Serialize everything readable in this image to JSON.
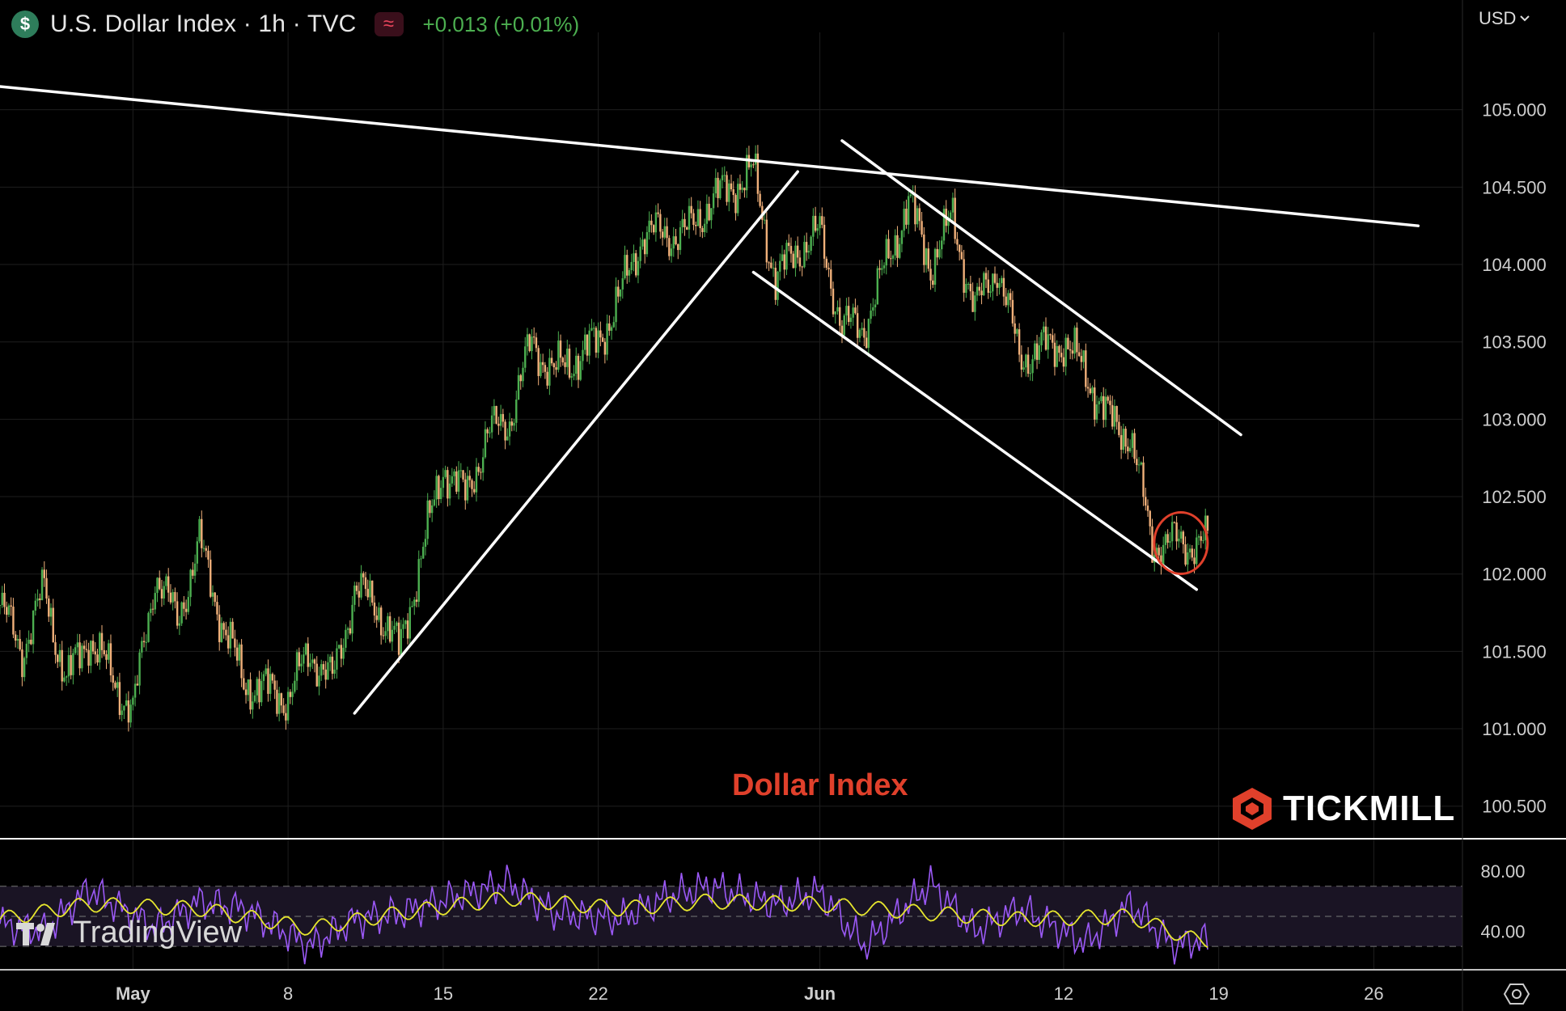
{
  "header": {
    "symbol_icon": "$",
    "title": "U.S. Dollar Index · 1h · TVC",
    "indicator_icon": "≈",
    "change": "+0.013 (+0.01%)"
  },
  "currency_selector": {
    "label": "USD",
    "icon": "chevron-down-icon"
  },
  "caption": "Dollar Index",
  "brand": {
    "name": "TICKMILL",
    "icon": "tickmill-logo-icon"
  },
  "tv_logo": {
    "text": "TradingView",
    "icon": "tradingview-logo-icon"
  },
  "settings_icon": "gear-icon",
  "colors": {
    "background": "#000000",
    "candle_up": "#4caf50",
    "candle_down": "#f0b07a",
    "trendline": "#ffffff",
    "circle": "#e0402b",
    "rsi": "#9b59f6",
    "rsi_ma": "#e6e62e",
    "change": "#4caf50",
    "caption": "#e0402b"
  },
  "chart_data": [
    {
      "type": "line",
      "title": "U.S. Dollar Index · 1h · TVC",
      "xlabel": "",
      "ylabel": "",
      "x_ticks": [
        "May",
        "8",
        "15",
        "22",
        "Jun",
        "12",
        "19",
        "26"
      ],
      "y_ticks": [
        "105.000",
        "104.500",
        "104.000",
        "103.500",
        "103.000",
        "102.500",
        "102.000",
        "101.500",
        "101.000",
        "100.500"
      ],
      "ylim": [
        100.3,
        105.5
      ],
      "xlim": [
        "2023-04-25",
        "2023-06-30"
      ],
      "grid": true,
      "series": [
        {
          "style": "candles-approx",
          "x": [
            "2023-04-25",
            "2023-04-26",
            "2023-04-27",
            "2023-04-28",
            "2023-04-29",
            "2023-05-01",
            "2023-05-02",
            "2023-05-03",
            "2023-05-04",
            "2023-05-05",
            "2023-05-06",
            "2023-05-08",
            "2023-05-09",
            "2023-05-10",
            "2023-05-11",
            "2023-05-12",
            "2023-05-13",
            "2023-05-15",
            "2023-05-16",
            "2023-05-17",
            "2023-05-18",
            "2023-05-19",
            "2023-05-20",
            "2023-05-22",
            "2023-05-23",
            "2023-05-24",
            "2023-05-25",
            "2023-05-26",
            "2023-05-27",
            "2023-05-29",
            "2023-05-30",
            "2023-05-31",
            "2023-06-01",
            "2023-06-02",
            "2023-06-03",
            "2023-06-05",
            "2023-06-06",
            "2023-06-07",
            "2023-06-08",
            "2023-06-09",
            "2023-06-10",
            "2023-06-12",
            "2023-06-13",
            "2023-06-14",
            "2023-06-15",
            "2023-06-16",
            "2023-06-17",
            "2023-06-18"
          ],
          "values": [
            101.8,
            101.5,
            101.9,
            101.3,
            101.6,
            101.1,
            102.0,
            101.7,
            102.2,
            101.7,
            101.3,
            101.2,
            101.5,
            101.3,
            101.9,
            101.8,
            101.5,
            102.7,
            102.5,
            102.9,
            103.0,
            103.5,
            103.3,
            103.5,
            103.8,
            104.2,
            104.2,
            104.2,
            104.4,
            104.6,
            103.9,
            104.1,
            104.2,
            103.6,
            103.6,
            104.4,
            104.0,
            104.3,
            103.7,
            104.0,
            103.4,
            103.5,
            103.3,
            103.0,
            102.9,
            102.2,
            102.2,
            102.2
          ]
        }
      ],
      "trendlines": [
        {
          "name": "long-term resistance",
          "from": [
            "2023-04-25",
            105.15
          ],
          "to": [
            "2023-06-28",
            104.25
          ]
        },
        {
          "name": "rising support",
          "from": [
            "2023-05-11",
            101.1
          ],
          "to": [
            "2023-05-31",
            104.6
          ]
        },
        {
          "name": "channel upper",
          "from": [
            "2023-06-02",
            104.8
          ],
          "to": [
            "2023-06-20",
            102.9
          ]
        },
        {
          "name": "channel lower",
          "from": [
            "2023-05-29",
            103.95
          ],
          "to": [
            "2023-06-18",
            101.9
          ]
        }
      ],
      "highlight": {
        "shape": "circle",
        "center": [
          "2023-06-17",
          102.2
        ]
      }
    },
    {
      "type": "line",
      "title": "",
      "y_ticks": [
        "80.00",
        "40.00"
      ],
      "ylim": [
        15,
        100
      ],
      "bands": [
        70,
        50,
        30
      ],
      "series": [
        {
          "x": [
            "2023-04-25",
            "2023-04-27",
            "2023-04-29",
            "2023-05-02",
            "2023-05-04",
            "2023-05-06",
            "2023-05-09",
            "2023-05-11",
            "2023-05-13",
            "2023-05-16",
            "2023-05-18",
            "2023-05-20",
            "2023-05-23",
            "2023-05-25",
            "2023-05-27",
            "2023-05-30",
            "2023-06-01",
            "2023-06-03",
            "2023-06-06",
            "2023-06-08",
            "2023-06-10",
            "2023-06-13",
            "2023-06-15",
            "2023-06-17",
            "2023-06-18"
          ],
          "values": [
            45,
            40,
            68,
            42,
            60,
            55,
            30,
            48,
            52,
            65,
            72,
            52,
            48,
            62,
            70,
            58,
            66,
            30,
            72,
            40,
            55,
            32,
            58,
            30,
            34
          ]
        },
        {
          "x": [
            "2023-04-25",
            "2023-04-29",
            "2023-05-04",
            "2023-05-09",
            "2023-05-13",
            "2023-05-18",
            "2023-05-23",
            "2023-05-27",
            "2023-06-01",
            "2023-06-06",
            "2023-06-10",
            "2023-06-15",
            "2023-06-18"
          ],
          "values": [
            48,
            58,
            55,
            42,
            52,
            62,
            55,
            60,
            58,
            52,
            48,
            50,
            34
          ]
        }
      ]
    }
  ]
}
